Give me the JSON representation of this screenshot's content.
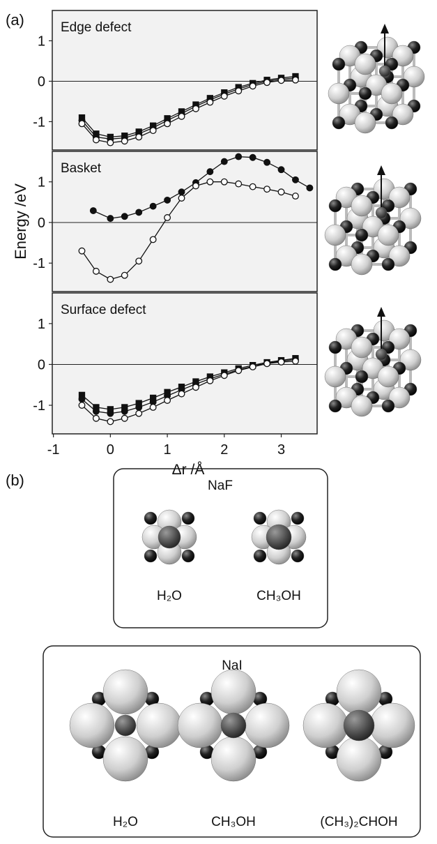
{
  "chart_data": [
    {
      "type": "line",
      "title": "Edge defect",
      "xlim": [
        -1.02,
        3.63
      ],
      "ylim": [
        -1.7,
        1.75
      ],
      "yticks": [
        -1,
        0,
        1
      ],
      "zero_line": true,
      "background": "#f2f2f2",
      "x": [
        -0.5,
        -0.25,
        0,
        0.25,
        0.5,
        0.75,
        1,
        1.25,
        1.5,
        1.75,
        2,
        2.25,
        2.5,
        2.75,
        3,
        3.25
      ],
      "series": [
        {
          "marker": "square",
          "filled": true,
          "color": "#111111",
          "values": [
            -0.9,
            -1.3,
            -1.38,
            -1.35,
            -1.25,
            -1.1,
            -0.92,
            -0.75,
            -0.58,
            -0.42,
            -0.28,
            -0.15,
            -0.05,
            0.03,
            0.08,
            0.12
          ]
        },
        {
          "marker": "circle",
          "filled": true,
          "color": "#111111",
          "values": [
            -0.97,
            -1.38,
            -1.43,
            -1.4,
            -1.3,
            -1.15,
            -0.97,
            -0.8,
            -0.62,
            -0.46,
            -0.32,
            -0.19,
            -0.08,
            0,
            0.05,
            0.08
          ]
        },
        {
          "marker": "circle",
          "filled": false,
          "color": "#111111",
          "values": [
            -1.05,
            -1.45,
            -1.52,
            -1.48,
            -1.38,
            -1.22,
            -1.05,
            -0.87,
            -0.68,
            -0.52,
            -0.37,
            -0.24,
            -0.12,
            -0.03,
            0.02,
            0.03
          ]
        }
      ]
    },
    {
      "type": "line",
      "title": "Basket",
      "ylabel": "Energy /eV",
      "xlim": [
        -1.02,
        3.63
      ],
      "ylim": [
        -1.7,
        1.75
      ],
      "yticks": [
        -1,
        0,
        1
      ],
      "zero_line": true,
      "background": "#f2f2f2",
      "series": [
        {
          "marker": "circle",
          "filled": true,
          "color": "#111111",
          "x": [
            -0.3,
            0,
            0.25,
            0.5,
            0.75,
            1,
            1.25,
            1.5,
            1.75,
            2,
            2.25,
            2.5,
            2.75,
            3,
            3.25,
            3.5
          ],
          "values": [
            0.29,
            0.1,
            0.15,
            0.25,
            0.4,
            0.55,
            0.75,
            0.98,
            1.25,
            1.5,
            1.62,
            1.6,
            1.48,
            1.3,
            1.05,
            0.85
          ]
        },
        {
          "marker": "circle",
          "filled": false,
          "color": "#111111",
          "x": [
            -0.5,
            -0.25,
            0,
            0.25,
            0.5,
            0.75,
            1,
            1.25,
            1.5,
            1.75,
            2,
            2.25,
            2.5,
            2.75,
            3,
            3.25
          ],
          "values": [
            -0.7,
            -1.2,
            -1.4,
            -1.3,
            -0.95,
            -0.42,
            0.12,
            0.6,
            0.9,
            1.0,
            1.0,
            0.95,
            0.88,
            0.82,
            0.75,
            0.65
          ]
        }
      ]
    },
    {
      "type": "line",
      "title": "Surface defect",
      "xlabel": "Δr /Å",
      "xlim": [
        -1.02,
        3.63
      ],
      "ylim": [
        -1.7,
        1.75
      ],
      "xticks": [
        -1,
        0,
        1,
        2,
        3
      ],
      "yticks": [
        -1,
        0,
        1
      ],
      "zero_line": true,
      "background": "#f2f2f2",
      "x": [
        -0.5,
        -0.25,
        0,
        0.25,
        0.5,
        0.75,
        1,
        1.25,
        1.5,
        1.75,
        2,
        2.25,
        2.5,
        2.75,
        3,
        3.25
      ],
      "series": [
        {
          "marker": "square",
          "filled": true,
          "color": "#111111",
          "values": [
            -0.75,
            -1.05,
            -1.1,
            -1.05,
            -0.95,
            -0.82,
            -0.68,
            -0.55,
            -0.42,
            -0.3,
            -0.2,
            -0.1,
            -0.02,
            0.05,
            0.1,
            0.15
          ]
        },
        {
          "marker": "circle",
          "filled": true,
          "color": "#111111",
          "values": [
            -0.85,
            -1.15,
            -1.2,
            -1.15,
            -1.05,
            -0.92,
            -0.77,
            -0.62,
            -0.48,
            -0.35,
            -0.24,
            -0.13,
            -0.05,
            0.03,
            0.08,
            0.12
          ]
        },
        {
          "marker": "circle",
          "filled": false,
          "color": "#111111",
          "values": [
            -1.0,
            -1.32,
            -1.4,
            -1.32,
            -1.2,
            -1.05,
            -0.88,
            -0.72,
            -0.56,
            -0.4,
            -0.27,
            -0.15,
            -0.06,
            0.02,
            0.06,
            0.08
          ]
        }
      ]
    }
  ],
  "panel_labels": [
    "(a)",
    "(b)"
  ],
  "boxes": [
    {
      "title": "NaF",
      "labels": [
        "H₂O",
        "CH₃OH"
      ]
    },
    {
      "title": "NaI",
      "labels": [
        "H₂O",
        "CH₃OH",
        "(CH₃)₂CHOH"
      ]
    }
  ]
}
